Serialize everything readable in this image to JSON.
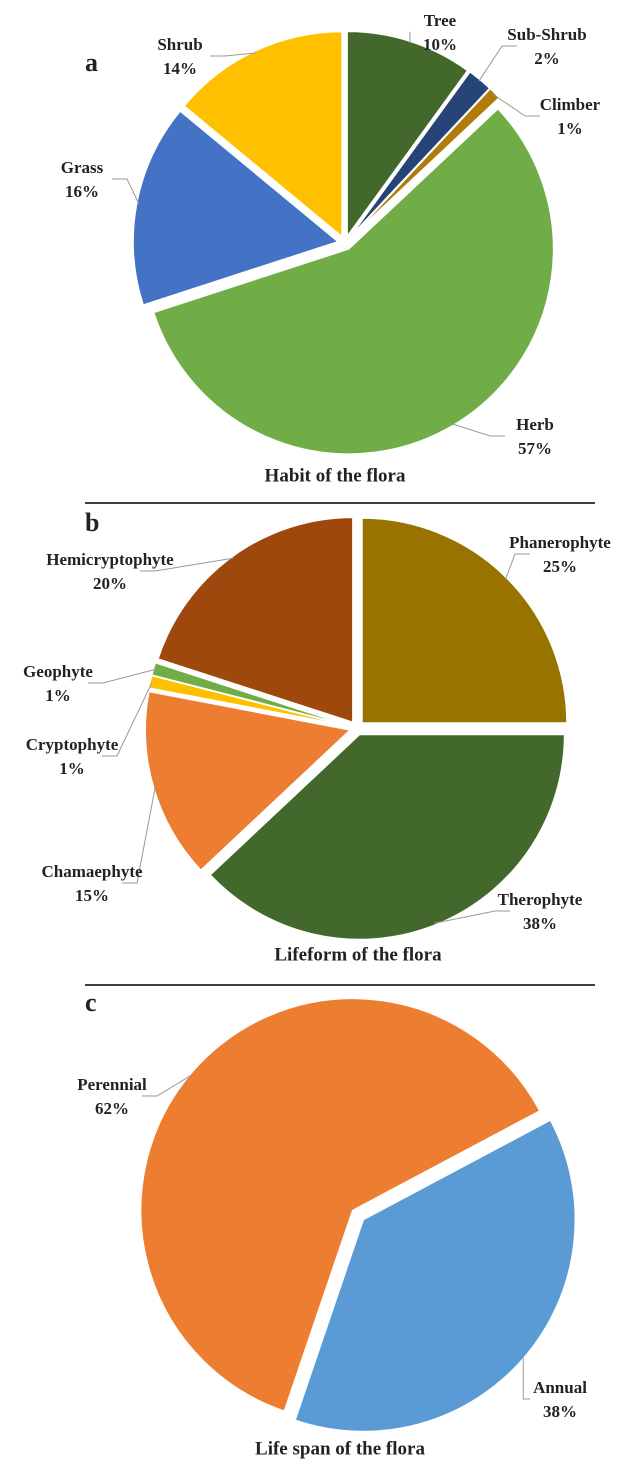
{
  "chart_data": [
    {
      "type": "pie",
      "panel_label": "a",
      "title": "Habit of the flora",
      "categories": [
        "Tree",
        "Sub-Shrub",
        "Climber",
        "Herb",
        "Grass",
        "Shrub"
      ],
      "values": [
        10,
        2,
        1,
        57,
        16,
        14
      ],
      "value_labels": [
        "10%",
        "2%",
        "1%",
        "57%",
        "16%",
        "14%"
      ],
      "colors": [
        "#43682b",
        "#264478",
        "#b07d0b",
        "#70ad47",
        "#4472c4",
        "#ffc000"
      ]
    },
    {
      "type": "pie",
      "panel_label": "b",
      "title": "Lifeform of the flora",
      "categories": [
        "Phanerophyte",
        "Therophyte",
        "Chamaephyte",
        "Cryptophyte",
        "Geophyte",
        "Hemicryptophyte"
      ],
      "values": [
        25,
        38,
        15,
        1,
        1,
        20
      ],
      "value_labels": [
        "25%",
        "38%",
        "15%",
        "1%",
        "1%",
        "20%"
      ],
      "colors": [
        "#997300",
        "#43682b",
        "#ed7d31",
        "#ffc000",
        "#70ad47",
        "#9e480e"
      ]
    },
    {
      "type": "pie",
      "panel_label": "c",
      "title": "Life span of the flora",
      "start_angle": 62,
      "categories": [
        "Annual",
        "Perennial"
      ],
      "values": [
        38,
        62
      ],
      "value_labels": [
        "38%",
        "62%"
      ],
      "colors": [
        "#5b9bd5",
        "#ed7d31"
      ]
    }
  ]
}
